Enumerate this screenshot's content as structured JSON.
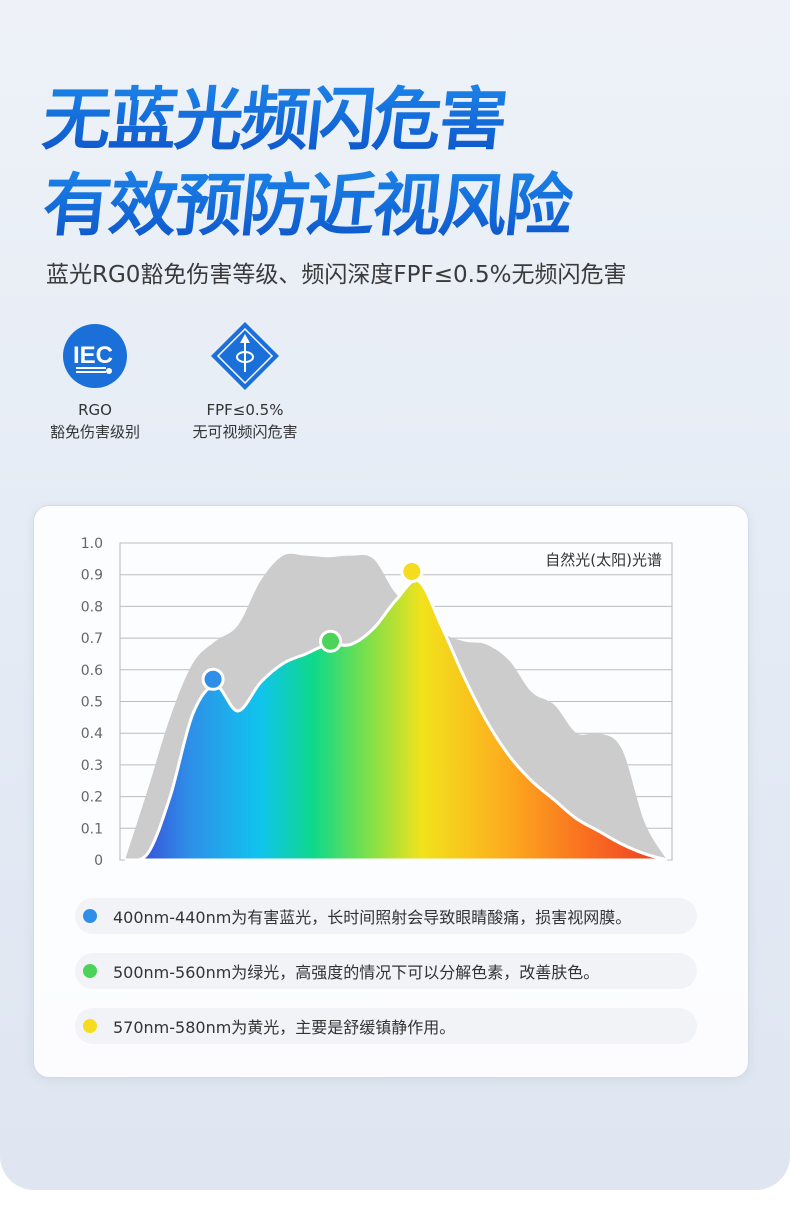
{
  "header": {
    "title_line1": "无蓝光频闪危害",
    "title_line2": "有效预防近视风险",
    "subtitle": "蓝光RG0豁免伤害等级、频闪深度FPF≤0.5%无频闪危害"
  },
  "badges": [
    {
      "icon": "iec-logo-icon",
      "logo_text": "IEC",
      "line1": "RGO",
      "line2": "豁免伤害级别"
    },
    {
      "icon": "flicker-diamond-icon",
      "line1": "FPF≤0.5%",
      "line2": "无可视频闪危害"
    }
  ],
  "colors": {
    "accent": "#1a6fd8",
    "blue": "#2f8fe8",
    "green": "#4cd35a",
    "yellow": "#f5dc1e",
    "sunlight": "#cccccc"
  },
  "chart_data": {
    "type": "area",
    "ylim": [
      0,
      1.0
    ],
    "yticks": [
      "0",
      "0.1",
      "0.2",
      "0.3",
      "0.4",
      "0.5",
      "0.6",
      "0.7",
      "0.8",
      "0.9",
      "1.0"
    ],
    "grid": true,
    "annotation": "自然光(太阳)光谱",
    "series": [
      {
        "name": "自然光(太阳)光谱",
        "color": "#cccccc",
        "values": [
          0,
          0.22,
          0.45,
          0.62,
          0.69,
          0.74,
          0.88,
          0.96,
          0.96,
          0.955,
          0.96,
          0.95,
          0.84,
          0.8,
          0.72,
          0.69,
          0.68,
          0.63,
          0.53,
          0.49,
          0.4,
          0.4,
          0.35,
          0.12,
          0
        ]
      },
      {
        "fill": "spectrum-gradient",
        "values": [
          0,
          0.02,
          0.2,
          0.46,
          0.55,
          0.47,
          0.56,
          0.62,
          0.65,
          0.68,
          0.68,
          0.73,
          0.82,
          0.88,
          0.74,
          0.58,
          0.44,
          0.33,
          0.25,
          0.19,
          0.13,
          0.09,
          0.05,
          0.02,
          0
        ]
      }
    ],
    "markers": [
      {
        "at_sample": 3.9,
        "value": 0.57,
        "color": "#2f8fe8"
      },
      {
        "at_sample": 9.1,
        "value": 0.69,
        "color": "#4cd35a"
      },
      {
        "at_sample": 12.7,
        "value": 0.91,
        "color": "#f5dc1e"
      }
    ]
  },
  "legend": [
    {
      "color": "#2f8fe8",
      "text": "400nm-440nm为有害蓝光，长时间照射会导致眼睛酸痛，损害视网膜。"
    },
    {
      "color": "#4cd35a",
      "text": "500nm-560nm为绿光，高强度的情况下可以分解色素，改善肤色。"
    },
    {
      "color": "#f5dc1e",
      "text": "570nm-580nm为黄光，主要是舒缓镇静作用。"
    }
  ]
}
